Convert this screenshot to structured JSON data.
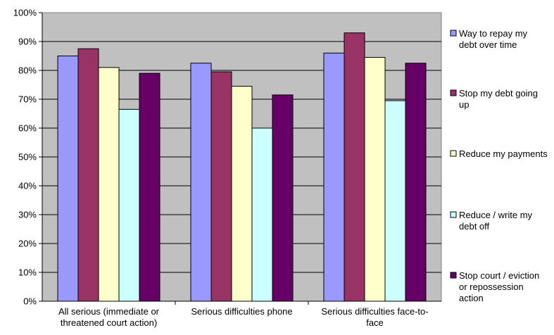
{
  "chart_data": {
    "type": "bar",
    "title": "",
    "xlabel": "",
    "ylabel": "",
    "ylim": [
      0,
      100
    ],
    "y_ticks": [
      "0%",
      "10%",
      "20%",
      "30%",
      "40%",
      "50%",
      "60%",
      "70%",
      "80%",
      "90%",
      "100%"
    ],
    "grid": true,
    "legend_position": "right",
    "categories": [
      [
        "All serious (immediate or",
        "threatened court action)"
      ],
      [
        "Serious difficulties phone"
      ],
      [
        "Serious difficulties face-to-",
        "face"
      ]
    ],
    "series": [
      {
        "name": [
          "Way to repay my",
          "debt over time"
        ],
        "color": "#9999ff",
        "values": [
          85,
          82.5,
          86
        ]
      },
      {
        "name": [
          "Stop my debt going",
          "up"
        ],
        "color": "#993366",
        "values": [
          87.5,
          79.5,
          93
        ]
      },
      {
        "name": [
          "Reduce my payments"
        ],
        "color": "#ffffcc",
        "values": [
          81,
          74.5,
          84.5
        ]
      },
      {
        "name": [
          "Reduce / write my",
          "debt off"
        ],
        "color": "#ccffff",
        "values": [
          66.5,
          60,
          69.5
        ]
      },
      {
        "name": [
          "Stop court / eviction",
          "or repossession",
          "action"
        ],
        "color": "#660066",
        "values": [
          79,
          71.5,
          82.5
        ]
      }
    ],
    "plot_background": "#c0c0c0"
  }
}
